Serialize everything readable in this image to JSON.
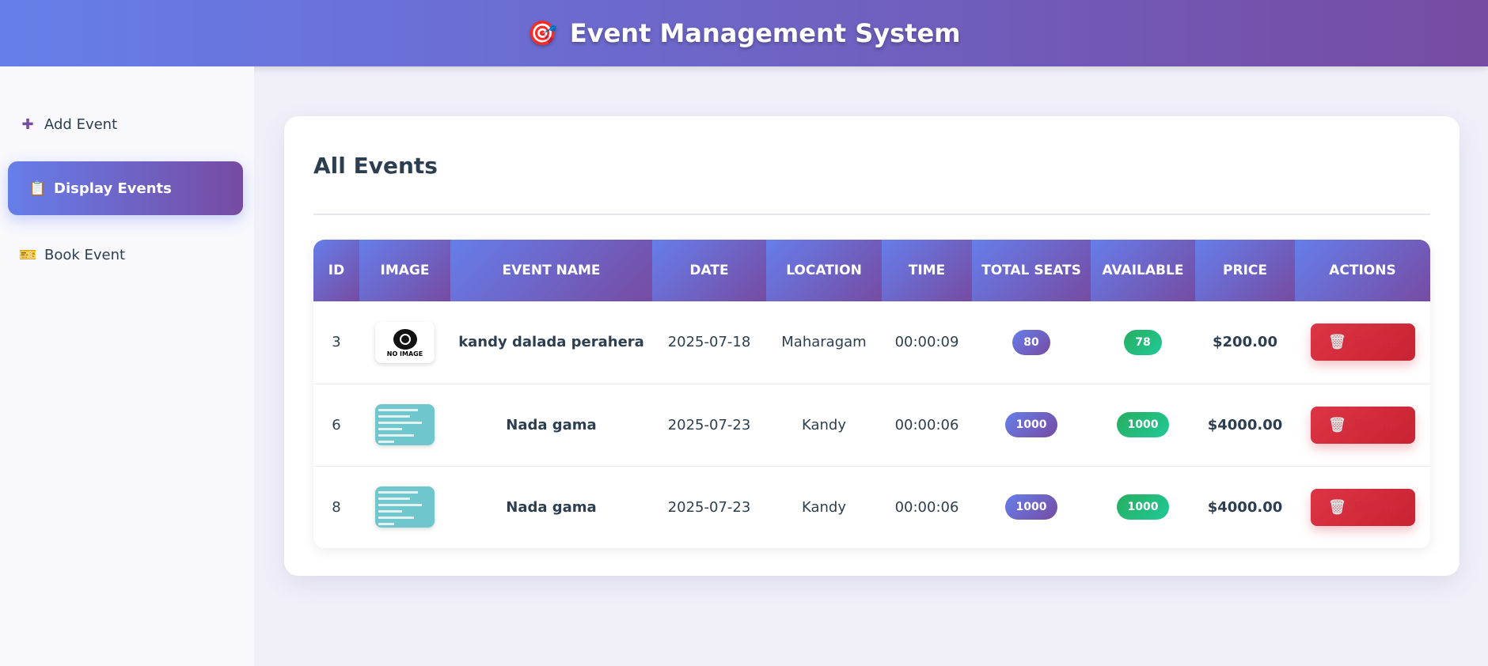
{
  "header": {
    "icon": "target-icon",
    "title": "Event Management System"
  },
  "sidebar": {
    "items": [
      {
        "icon": "plus-icon",
        "glyph": "➕",
        "label": "Add Event",
        "active": false
      },
      {
        "icon": "clipboard-icon",
        "glyph": "📋",
        "label": "Display Events",
        "active": true
      },
      {
        "icon": "ticket-icon",
        "glyph": "🎫",
        "label": "Book Event",
        "active": false
      }
    ]
  },
  "main": {
    "title": "All Events",
    "columns": [
      "ID",
      "IMAGE",
      "EVENT NAME",
      "DATE",
      "LOCATION",
      "TIME",
      "TOTAL SEATS",
      "AVAILABLE",
      "PRICE",
      "ACTIONS"
    ],
    "rows": [
      {
        "id": "3",
        "image": "no-image",
        "image_text": "NO IMAGE",
        "name": "kandy dalada perahera",
        "date": "2025-07-18",
        "location": "Maharagam",
        "time": "00:00:09",
        "total": "80",
        "available": "78",
        "price": "$200.00",
        "action": "Delete"
      },
      {
        "id": "6",
        "image": "screenshot",
        "name": "Nada gama",
        "date": "2025-07-23",
        "location": "Kandy",
        "time": "00:00:06",
        "total": "1000",
        "available": "1000",
        "price": "$4000.00",
        "action": "Delete"
      },
      {
        "id": "8",
        "image": "screenshot",
        "name": "Nada gama",
        "date": "2025-07-23",
        "location": "Kandy",
        "time": "00:00:06",
        "total": "1000",
        "available": "1000",
        "price": "$4000.00",
        "action": "Delete"
      }
    ]
  },
  "colors": {
    "accent_start": "#667eea",
    "accent_end": "#764ba2",
    "success": "#27ae60",
    "danger": "#dc3545"
  }
}
